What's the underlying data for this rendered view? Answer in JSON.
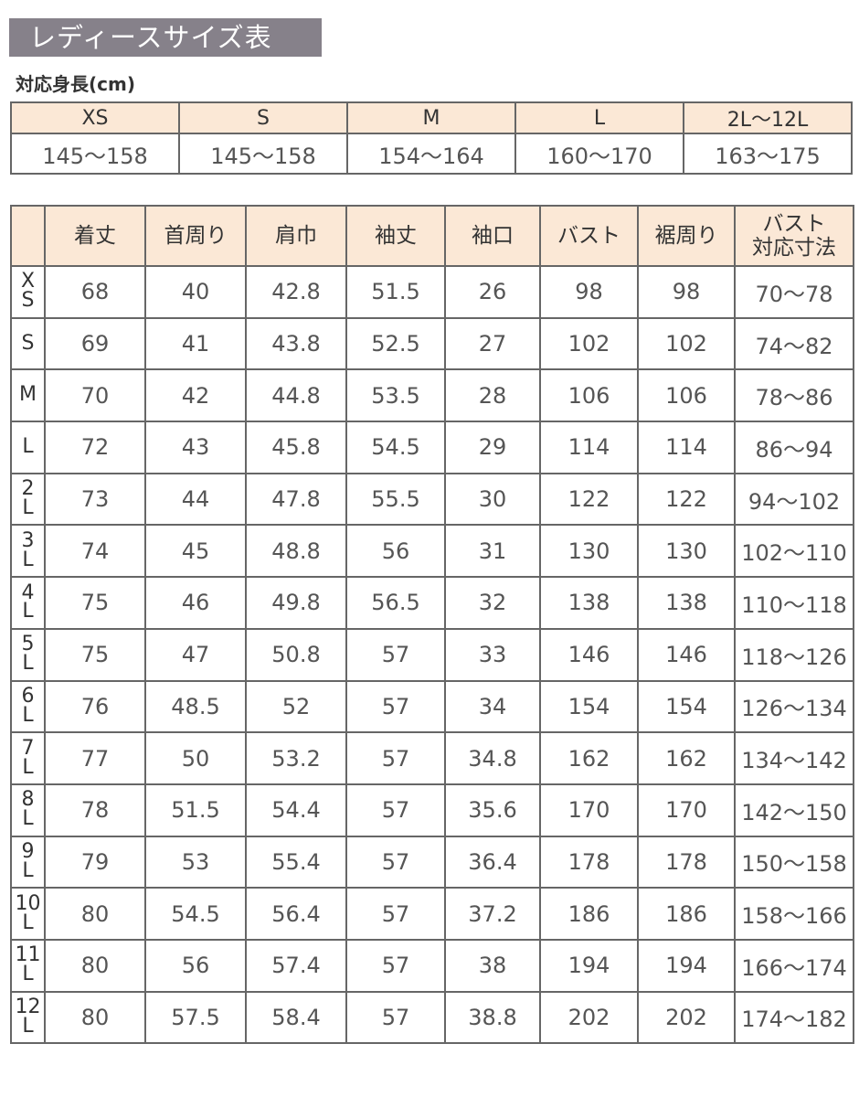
{
  "title": "レディースサイズ表",
  "height_section": {
    "label": "対応身長(cm)",
    "sizes": [
      "XS",
      "S",
      "M",
      "L",
      "2L〜12L"
    ],
    "ranges": [
      "145〜158",
      "145〜158",
      "154〜164",
      "160〜170",
      "163〜175"
    ]
  },
  "measure_table": {
    "headers": [
      "着丈",
      "首周り",
      "肩巾",
      "袖丈",
      "袖口",
      "バスト",
      "裾周り",
      "バスト\n対応寸法"
    ],
    "header_last_lines": [
      "バスト",
      "対応寸法"
    ],
    "rows": [
      {
        "size_lines": [
          "X",
          "S"
        ],
        "values": [
          "68",
          "40",
          "42.8",
          "51.5",
          "26",
          "98",
          "98",
          "70〜78"
        ]
      },
      {
        "size_lines": [
          "S"
        ],
        "values": [
          "69",
          "41",
          "43.8",
          "52.5",
          "27",
          "102",
          "102",
          "74〜82"
        ]
      },
      {
        "size_lines": [
          "M"
        ],
        "values": [
          "70",
          "42",
          "44.8",
          "53.5",
          "28",
          "106",
          "106",
          "78〜86"
        ]
      },
      {
        "size_lines": [
          "L"
        ],
        "values": [
          "72",
          "43",
          "45.8",
          "54.5",
          "29",
          "114",
          "114",
          "86〜94"
        ]
      },
      {
        "size_lines": [
          "2",
          "L"
        ],
        "values": [
          "73",
          "44",
          "47.8",
          "55.5",
          "30",
          "122",
          "122",
          "94〜102"
        ]
      },
      {
        "size_lines": [
          "3",
          "L"
        ],
        "values": [
          "74",
          "45",
          "48.8",
          "56",
          "31",
          "130",
          "130",
          "102〜110"
        ]
      },
      {
        "size_lines": [
          "4",
          "L"
        ],
        "values": [
          "75",
          "46",
          "49.8",
          "56.5",
          "32",
          "138",
          "138",
          "110〜118"
        ]
      },
      {
        "size_lines": [
          "5",
          "L"
        ],
        "values": [
          "75",
          "47",
          "50.8",
          "57",
          "33",
          "146",
          "146",
          "118〜126"
        ]
      },
      {
        "size_lines": [
          "6",
          "L"
        ],
        "values": [
          "76",
          "48.5",
          "52",
          "57",
          "34",
          "154",
          "154",
          "126〜134"
        ]
      },
      {
        "size_lines": [
          "7",
          "L"
        ],
        "values": [
          "77",
          "50",
          "53.2",
          "57",
          "34.8",
          "162",
          "162",
          "134〜142"
        ]
      },
      {
        "size_lines": [
          "8",
          "L"
        ],
        "values": [
          "78",
          "51.5",
          "54.4",
          "57",
          "35.6",
          "170",
          "170",
          "142〜150"
        ]
      },
      {
        "size_lines": [
          "9",
          "L"
        ],
        "values": [
          "79",
          "53",
          "55.4",
          "57",
          "36.4",
          "178",
          "178",
          "150〜158"
        ]
      },
      {
        "size_lines": [
          "10",
          "L"
        ],
        "values": [
          "80",
          "54.5",
          "56.4",
          "57",
          "37.2",
          "186",
          "186",
          "158〜166"
        ]
      },
      {
        "size_lines": [
          "11",
          "L"
        ],
        "values": [
          "80",
          "56",
          "57.4",
          "57",
          "38",
          "194",
          "194",
          "166〜174"
        ]
      },
      {
        "size_lines": [
          "12",
          "L"
        ],
        "values": [
          "80",
          "57.5",
          "58.4",
          "57",
          "38.8",
          "202",
          "202",
          "174〜182"
        ]
      }
    ]
  },
  "colors": {
    "title_bg": "#86818a",
    "header_bg": "#fbe8d6",
    "border": "#666666"
  }
}
